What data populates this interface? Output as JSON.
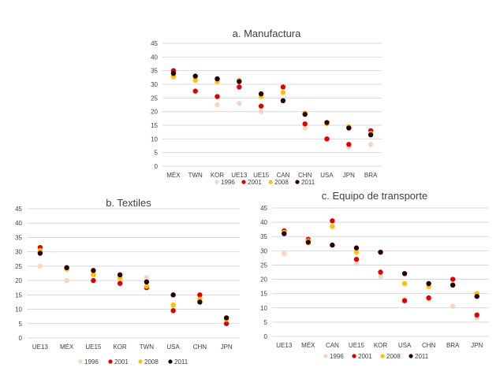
{
  "colors": {
    "1996": "#f8d5bf",
    "2001": "#e00000",
    "2008": "#ffc000",
    "2011": "#2b0000",
    "grid": "#d9d9d9",
    "text": "#404040"
  },
  "chart_data": [
    {
      "type": "scatter",
      "title": "a. Manufactura",
      "ylim": [
        0,
        45
      ],
      "ytick_step": 5,
      "grid": true,
      "legend_position": "bottom",
      "categories": [
        "MÉX",
        "TWN",
        "KOR",
        "UE13",
        "UE15",
        "CAN",
        "CHN",
        "USA",
        "JPN",
        "BRA"
      ],
      "series": [
        {
          "name": "1996",
          "values": [
            32.5,
            27.5,
            22.5,
            23,
            20,
            24,
            14,
            10,
            7,
            8
          ]
        },
        {
          "name": "2001",
          "values": [
            35,
            27.5,
            25.5,
            29,
            22,
            29,
            15.5,
            10,
            8,
            13
          ]
        },
        {
          "name": "2008",
          "values": [
            33,
            31.5,
            31,
            31.5,
            25.5,
            27,
            19.5,
            15.5,
            14.5,
            12
          ]
        },
        {
          "name": "2011",
          "values": [
            34,
            33,
            32,
            31,
            26.5,
            24,
            19,
            16,
            14,
            11.5
          ]
        }
      ]
    },
    {
      "type": "scatter",
      "title": "b. Textiles",
      "ylim": [
        0,
        45
      ],
      "ytick_step": 5,
      "grid": true,
      "legend_position": "bottom",
      "categories": [
        "UE13",
        "MÉX",
        "UE15",
        "KOR",
        "TWN",
        "USA",
        "CHN",
        "JPN"
      ],
      "series": [
        {
          "name": "1996",
          "values": [
            25,
            20,
            22,
            20,
            21,
            11,
            14,
            5
          ]
        },
        {
          "name": "2001",
          "values": [
            31.5,
            24,
            20,
            19,
            17.5,
            9.5,
            15,
            5
          ]
        },
        {
          "name": "2008",
          "values": [
            30.5,
            24,
            22,
            21,
            18,
            11.5,
            13.5,
            6.5
          ]
        },
        {
          "name": "2011",
          "values": [
            29.5,
            24.5,
            23.5,
            22,
            19.5,
            15,
            12.5,
            7
          ]
        }
      ]
    },
    {
      "type": "scatter",
      "title": "c. Equipo de transporte",
      "ylim": [
        0,
        45
      ],
      "ytick_step": 5,
      "grid": true,
      "legend_position": "bottom",
      "categories": [
        "UE13",
        "MÉX",
        "CAN",
        "UE15",
        "KOR",
        "USA",
        "CHN",
        "BRA",
        "JPN"
      ],
      "series": [
        {
          "name": "1996",
          "values": [
            29,
            32.5,
            32,
            25.5,
            21,
            13,
            13,
            10.5,
            6.5
          ]
        },
        {
          "name": "2001",
          "values": [
            37,
            34,
            40.5,
            27,
            22.5,
            12.5,
            13.5,
            20,
            7.5
          ]
        },
        {
          "name": "2008",
          "values": [
            36.5,
            33.5,
            38.5,
            29.5,
            29.5,
            18.5,
            17.5,
            18,
            15
          ]
        },
        {
          "name": "2011",
          "values": [
            36,
            33,
            32,
            31,
            29.5,
            22,
            18.5,
            18,
            14
          ]
        }
      ]
    }
  ]
}
